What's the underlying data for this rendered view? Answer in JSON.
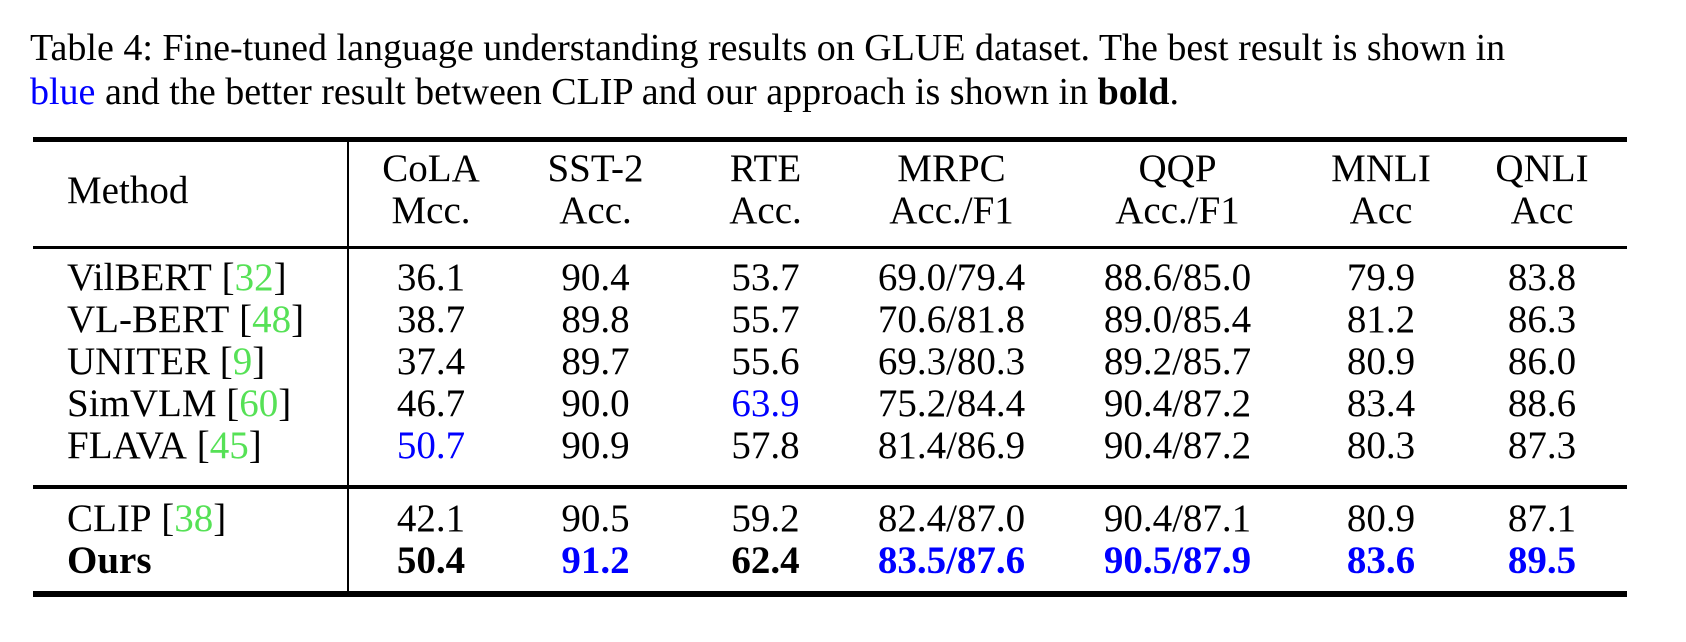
{
  "colors": {
    "highlight_blue": "#0000ff",
    "citation_green": "#56e156",
    "text_black": "#000000",
    "background": "#ffffff"
  },
  "caption": {
    "line1": "Table 4: Fine-tuned language understanding results on GLUE dataset. The best result is shown in",
    "blue_word": "blue",
    "line2_rest": "and the better result between CLIP and our approach is shown in",
    "bold_word": "bold",
    "period": "."
  },
  "table": {
    "header": {
      "method_label": "Method",
      "columns": [
        {
          "name": "CoLA",
          "metric": "Mcc."
        },
        {
          "name": "SST-2",
          "metric": "Acc."
        },
        {
          "name": "RTE",
          "metric": "Acc."
        },
        {
          "name": "MRPC",
          "metric": "Acc./F1"
        },
        {
          "name": "QQP",
          "metric": "Acc./F1"
        },
        {
          "name": "MNLI",
          "metric": "Acc"
        },
        {
          "name": "QNLI",
          "metric": "Acc"
        }
      ]
    },
    "sections": [
      {
        "rows": [
          {
            "method": "VilBERT",
            "cite": "32",
            "bold": false,
            "cells": [
              {
                "v": "36.1",
                "s": ""
              },
              {
                "v": "90.4",
                "s": ""
              },
              {
                "v": "53.7",
                "s": ""
              },
              {
                "v": "69.0/79.4",
                "s": ""
              },
              {
                "v": "88.6/85.0",
                "s": ""
              },
              {
                "v": "79.9",
                "s": ""
              },
              {
                "v": "83.8",
                "s": ""
              }
            ]
          },
          {
            "method": "VL-BERT",
            "cite": "48",
            "bold": false,
            "cells": [
              {
                "v": "38.7",
                "s": ""
              },
              {
                "v": "89.8",
                "s": ""
              },
              {
                "v": "55.7",
                "s": ""
              },
              {
                "v": "70.6/81.8",
                "s": ""
              },
              {
                "v": "89.0/85.4",
                "s": ""
              },
              {
                "v": "81.2",
                "s": ""
              },
              {
                "v": "86.3",
                "s": ""
              }
            ]
          },
          {
            "method": "UNITER",
            "cite": "9",
            "bold": false,
            "cells": [
              {
                "v": "37.4",
                "s": ""
              },
              {
                "v": "89.7",
                "s": ""
              },
              {
                "v": "55.6",
                "s": ""
              },
              {
                "v": "69.3/80.3",
                "s": ""
              },
              {
                "v": "89.2/85.7",
                "s": ""
              },
              {
                "v": "80.9",
                "s": ""
              },
              {
                "v": "86.0",
                "s": ""
              }
            ]
          },
          {
            "method": "SimVLM",
            "cite": "60",
            "bold": false,
            "cells": [
              {
                "v": "46.7",
                "s": ""
              },
              {
                "v": "90.0",
                "s": ""
              },
              {
                "v": "63.9",
                "s": "blue"
              },
              {
                "v": "75.2/84.4",
                "s": ""
              },
              {
                "v": "90.4/87.2",
                "s": ""
              },
              {
                "v": "83.4",
                "s": ""
              },
              {
                "v": "88.6",
                "s": ""
              }
            ]
          },
          {
            "method": "FLAVA",
            "cite": "45",
            "bold": false,
            "cells": [
              {
                "v": "50.7",
                "s": "blue"
              },
              {
                "v": "90.9",
                "s": ""
              },
              {
                "v": "57.8",
                "s": ""
              },
              {
                "v": "81.4/86.9",
                "s": ""
              },
              {
                "v": "90.4/87.2",
                "s": ""
              },
              {
                "v": "80.3",
                "s": ""
              },
              {
                "v": "87.3",
                "s": ""
              }
            ]
          }
        ]
      },
      {
        "rows": [
          {
            "method": "CLIP",
            "cite": "38",
            "bold": false,
            "cells": [
              {
                "v": "42.1",
                "s": ""
              },
              {
                "v": "90.5",
                "s": ""
              },
              {
                "v": "59.2",
                "s": ""
              },
              {
                "v": "82.4/87.0",
                "s": ""
              },
              {
                "v": "90.4/87.1",
                "s": ""
              },
              {
                "v": "80.9",
                "s": ""
              },
              {
                "v": "87.1",
                "s": ""
              }
            ]
          },
          {
            "method": "Ours",
            "cite": null,
            "bold": true,
            "cells": [
              {
                "v": "50.4",
                "s": "bold"
              },
              {
                "v": "91.2",
                "s": "bold-blue"
              },
              {
                "v": "62.4",
                "s": "bold"
              },
              {
                "v": "83.5/87.6",
                "s": "bold-blue"
              },
              {
                "v": "90.5/87.9",
                "s": "bold-blue"
              },
              {
                "v": "83.6",
                "s": "bold-blue"
              },
              {
                "v": "89.5",
                "s": "bold-blue"
              }
            ]
          }
        ]
      }
    ]
  }
}
